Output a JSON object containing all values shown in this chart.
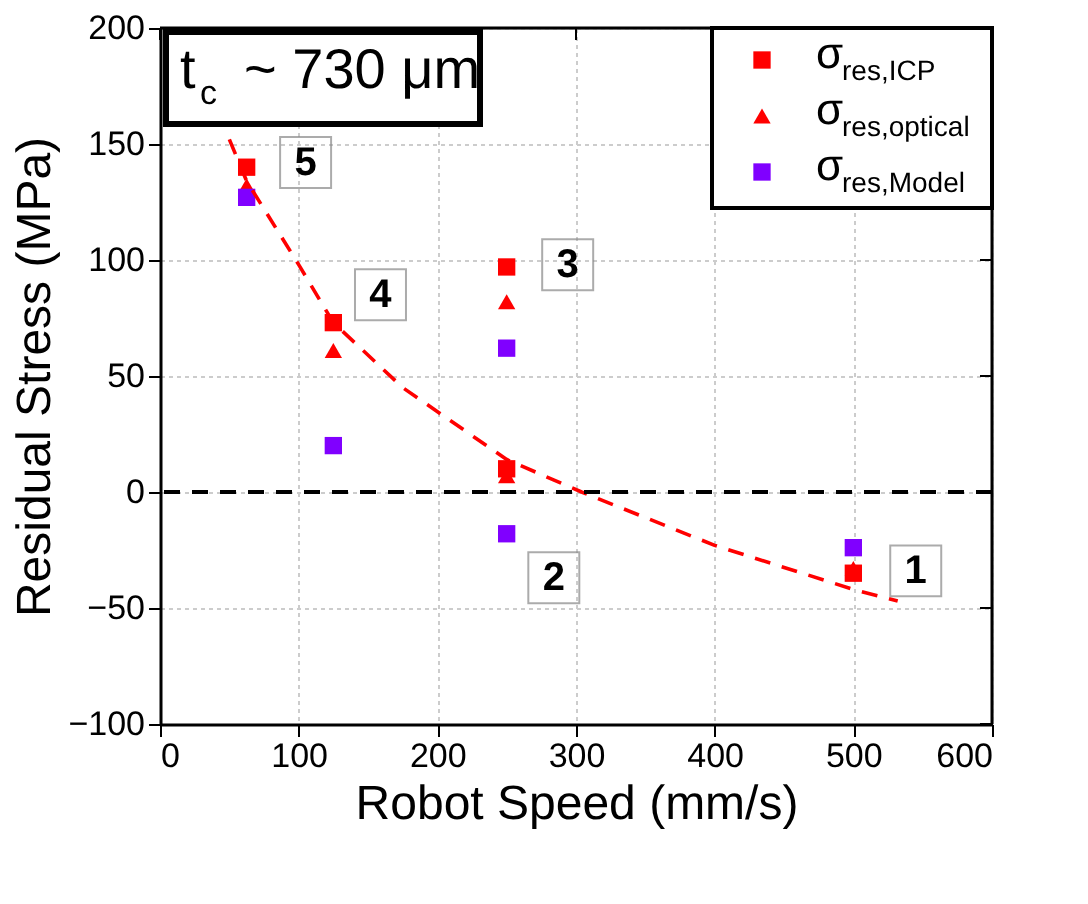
{
  "chart_data": {
    "type": "scatter",
    "xlabel": "Robot Speed (mm/s)",
    "ylabel": "Residual Stress (MPa)",
    "x": [
      62.5,
      125,
      250,
      250,
      500
    ],
    "series": [
      {
        "name": "σ$_{res,ICP}$",
        "color": "#ff0000",
        "marker": "square",
        "values": [
          140,
          73,
          97,
          10,
          -35
        ]
      },
      {
        "name": "σ$_{res,optical}$",
        "color": "#ff0000",
        "marker": "triangle",
        "values": [
          132,
          61,
          82,
          7,
          -33
        ]
      },
      {
        "name": "σ$_{res,Model}$",
        "color": "#8000ff",
        "marker": "square",
        "values": [
          127,
          20,
          62,
          -18,
          -24
        ]
      },
      {
        "type": "line",
        "color": "#ff0000",
        "line_style": "dashed",
        "x": [
          50,
          62.5,
          100,
          125,
          175,
          250,
          304,
          400,
          500,
          532
        ],
        "values": [
          152,
          134,
          98,
          73,
          45,
          14,
          0,
          -23,
          -42,
          -47
        ]
      }
    ],
    "xlim": [
      0,
      600
    ],
    "xticks": [
      0,
      100,
      200,
      300,
      400,
      500,
      600
    ],
    "ylim": [
      -100,
      200
    ],
    "yticks": [
      -100,
      -50,
      0,
      50,
      100,
      150,
      200
    ],
    "grid": true,
    "legend": "top right",
    "ref_lines": [
      {
        "axis": "y",
        "value": 0,
        "color": "#000000",
        "line_style": "dashed"
      }
    ],
    "annotations": [
      "t$_{c}$ ~ 730 μm",
      {
        "text": "5",
        "x": 105,
        "y": 142
      },
      {
        "text": "4",
        "x": 159,
        "y": 85
      },
      {
        "text": "3",
        "x": 294,
        "y": 98
      },
      {
        "text": "2",
        "x": 284,
        "y": -37
      },
      {
        "text": "1",
        "x": 545,
        "y": -34
      }
    ]
  }
}
